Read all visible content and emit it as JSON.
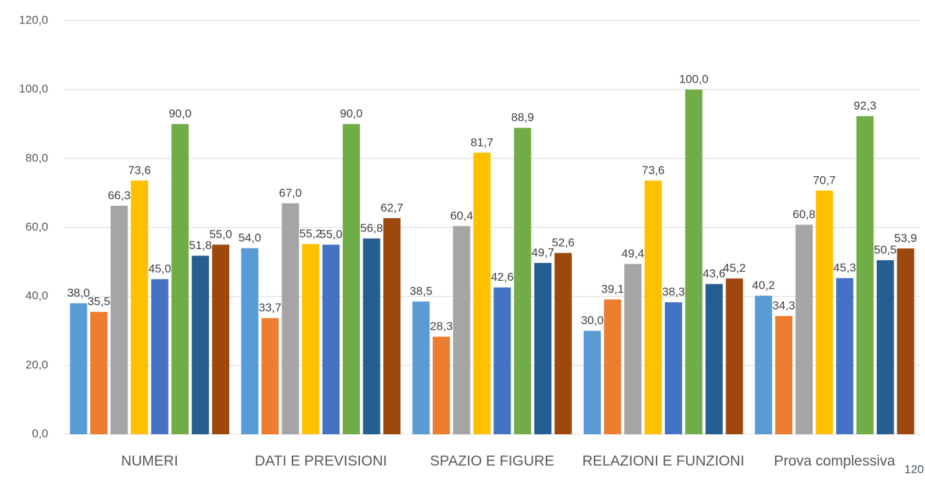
{
  "chart_data": {
    "type": "bar",
    "categories": [
      "NUMERI",
      "DATI E PREVISIONI",
      "SPAZIO E FIGURE",
      "RELAZIONI E FUNZIONI",
      "Prova complessiva"
    ],
    "series": [
      {
        "color": "#5b9bd5",
        "values": [
          38.0,
          54.0,
          38.5,
          30.0,
          40.2
        ],
        "value_labels": [
          "38,0",
          "54,0",
          "38,5",
          "30,0",
          "40,2"
        ]
      },
      {
        "color": "#ed7d31",
        "values": [
          35.5,
          33.7,
          28.3,
          39.1,
          34.3
        ],
        "value_labels": [
          "35,5",
          "33,7",
          "28,3",
          "39,1",
          "34,3"
        ]
      },
      {
        "color": "#a5a5a5",
        "values": [
          66.3,
          67.0,
          60.4,
          49.4,
          60.8
        ],
        "value_labels": [
          "66,3",
          "67,0",
          "60,4",
          "49,4",
          "60,8"
        ]
      },
      {
        "color": "#ffc000",
        "values": [
          73.6,
          55.2,
          81.7,
          73.6,
          70.7
        ],
        "value_labels": [
          "73,6",
          "55,2",
          "81,7",
          "73,6",
          "70,7"
        ]
      },
      {
        "color": "#4472c4",
        "values": [
          45.0,
          55.0,
          42.6,
          38.3,
          45.3
        ],
        "value_labels": [
          "45,0",
          "55,0",
          "42,6",
          "38,3",
          "45,3"
        ]
      },
      {
        "color": "#70ad47",
        "values": [
          90.0,
          90.0,
          88.9,
          100.0,
          92.3
        ],
        "value_labels": [
          "90,0",
          "90,0",
          "88,9",
          "100,0",
          "92,3"
        ]
      },
      {
        "color": "#255e91",
        "values": [
          51.8,
          56.8,
          49.7,
          43.6,
          50.5
        ],
        "value_labels": [
          "51,8",
          "56,8",
          "49,7",
          "43,6",
          "50,5"
        ]
      },
      {
        "color": "#9e480e",
        "values": [
          55.0,
          62.7,
          52.6,
          45.2,
          53.9
        ],
        "value_labels": [
          "55,0",
          "62,7",
          "52,6",
          "45,2",
          "53,9"
        ]
      }
    ],
    "ylim": [
      0,
      120
    ],
    "yticks": [
      {
        "value": 0,
        "label": "0,0"
      },
      {
        "value": 20,
        "label": "20,0"
      },
      {
        "value": 40,
        "label": "40,0"
      },
      {
        "value": 60,
        "label": "60,0"
      },
      {
        "value": 80,
        "label": "80,0"
      },
      {
        "value": 100,
        "label": "100,0"
      },
      {
        "value": 120,
        "label": "120,0"
      }
    ],
    "grid": true,
    "annotation": "120,0"
  }
}
